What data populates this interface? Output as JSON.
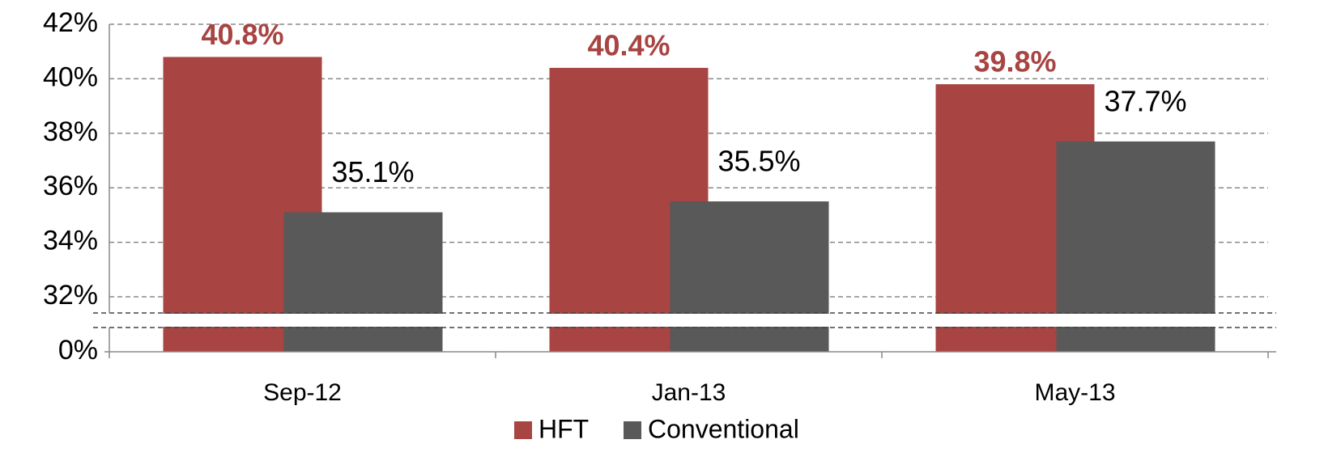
{
  "chart_data": {
    "type": "bar",
    "categories": [
      "Sep-12",
      "Jan-13",
      "May-13"
    ],
    "series": [
      {
        "name": "HFT",
        "color": "#a84442",
        "values": [
          40.8,
          40.4,
          39.8
        ],
        "value_labels": [
          "40.8%",
          "40.4%",
          "39.8%"
        ]
      },
      {
        "name": "Conventional",
        "color": "#595959",
        "values": [
          35.1,
          35.5,
          37.7
        ],
        "value_labels": [
          "35.1%",
          "35.5%",
          "37.7%"
        ]
      }
    ],
    "ylim": [
      0,
      42
    ],
    "axis_break": [
      0,
      32
    ],
    "yticks": [
      {
        "value": 0,
        "label": "0%"
      },
      {
        "value": 32,
        "label": "32%"
      },
      {
        "value": 34,
        "label": "34%"
      },
      {
        "value": 36,
        "label": "36%"
      },
      {
        "value": 38,
        "label": "38%"
      },
      {
        "value": 40,
        "label": "40%"
      },
      {
        "value": 42,
        "label": "42%"
      }
    ],
    "grid": true,
    "legend": "bottom"
  }
}
